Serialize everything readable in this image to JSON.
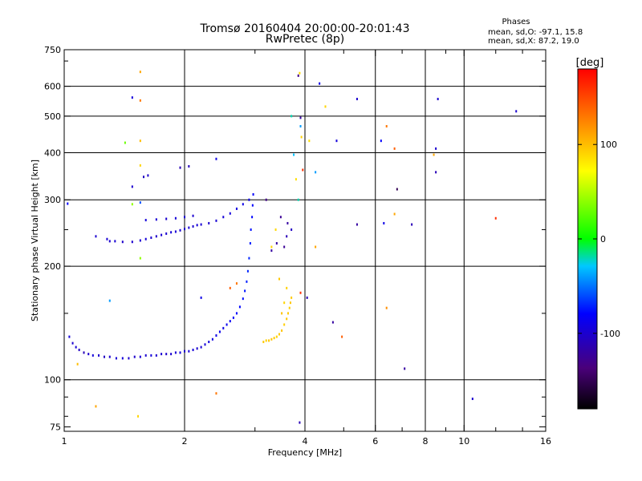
{
  "chart_data": {
    "type": "scatter",
    "title_line1": "Tromsø 20160404 20:00:00-20:01:43",
    "title_line2": "RwPretec (8p)",
    "phases": {
      "heading": "Phases",
      "line_o": "mean, sd,O: -97.1, 15.8",
      "line_x": "mean, sd,X:  87.2, 19.0"
    },
    "xlabel": "Frequency [MHz]",
    "ylabel": "Stationary phase Virtual Height [km]",
    "x_scale": "log",
    "y_scale": "log",
    "xlim": [
      1,
      16
    ],
    "ylim": [
      73,
      750
    ],
    "x_ticks": [
      1,
      2,
      4,
      6,
      8,
      10,
      16
    ],
    "x_tick_labels": [
      "1",
      "2",
      "4",
      "6",
      "8",
      "10",
      "16"
    ],
    "x_minor_ticks": [
      3,
      5,
      7,
      9,
      12,
      14
    ],
    "y_ticks": [
      75,
      100,
      200,
      300,
      400,
      500,
      600,
      750
    ],
    "y_tick_labels": [
      "75",
      "100",
      "200",
      "300",
      "400",
      "500",
      "600",
      "750"
    ],
    "y_minor_ticks": [
      80,
      90,
      150,
      250,
      700
    ],
    "grid": true,
    "colorbar": {
      "label": "[deg]",
      "range": [
        -180,
        180
      ],
      "ticks": [
        100,
        0,
        -100
      ],
      "tick_labels": [
        "100",
        "0",
        "-100"
      ]
    },
    "series": [
      {
        "label_note": "O-mode trace (blue, phase ~ -100 deg)",
        "points": [
          [
            1.03,
            130,
            -95
          ],
          [
            1.05,
            125,
            -100
          ],
          [
            1.07,
            122,
            -98
          ],
          [
            1.09,
            120,
            -105
          ],
          [
            1.12,
            118,
            -110
          ],
          [
            1.15,
            117,
            -100
          ],
          [
            1.18,
            116,
            -95
          ],
          [
            1.22,
            116,
            -100
          ],
          [
            1.26,
            115,
            -105
          ],
          [
            1.3,
            115,
            -100
          ],
          [
            1.35,
            114,
            -98
          ],
          [
            1.4,
            114,
            -95
          ],
          [
            1.45,
            114,
            -100
          ],
          [
            1.5,
            115,
            -102
          ],
          [
            1.55,
            115,
            -98
          ],
          [
            1.6,
            116,
            -100
          ],
          [
            1.65,
            116,
            -95
          ],
          [
            1.7,
            116,
            -100
          ],
          [
            1.75,
            117,
            -98
          ],
          [
            1.8,
            117,
            -102
          ],
          [
            1.85,
            117,
            -100
          ],
          [
            1.9,
            118,
            -98
          ],
          [
            1.95,
            118,
            -95
          ],
          [
            2.0,
            119,
            -100
          ],
          [
            2.05,
            119,
            -98
          ],
          [
            2.1,
            120,
            -96
          ],
          [
            2.15,
            121,
            -100
          ],
          [
            2.2,
            122,
            -98
          ],
          [
            2.25,
            124,
            -96
          ],
          [
            2.3,
            126,
            -94
          ],
          [
            2.35,
            128,
            -92
          ],
          [
            2.4,
            131,
            -90
          ],
          [
            2.45,
            134,
            -88
          ],
          [
            2.5,
            137,
            -90
          ],
          [
            2.55,
            140,
            -86
          ],
          [
            2.6,
            143,
            -84
          ],
          [
            2.65,
            146,
            -82
          ],
          [
            2.7,
            150,
            -80
          ],
          [
            2.75,
            156,
            -78
          ],
          [
            2.8,
            164,
            -76
          ],
          [
            2.83,
            172,
            -74
          ],
          [
            2.86,
            182,
            -72
          ],
          [
            2.88,
            194,
            -70
          ],
          [
            2.9,
            210,
            -70
          ],
          [
            2.92,
            230,
            -72
          ],
          [
            2.93,
            250,
            -75
          ],
          [
            2.95,
            270,
            -78
          ],
          [
            2.96,
            290,
            -80
          ],
          [
            2.97,
            310,
            -82
          ],
          [
            1.3,
            233,
            -100
          ],
          [
            1.34,
            233,
            -98
          ],
          [
            1.4,
            232,
            -102
          ],
          [
            1.48,
            232,
            -100
          ],
          [
            1.55,
            234,
            -98
          ],
          [
            1.6,
            236,
            -96
          ],
          [
            1.65,
            238,
            -100
          ],
          [
            1.7,
            240,
            -102
          ],
          [
            1.75,
            242,
            -98
          ],
          [
            1.8,
            244,
            -100
          ],
          [
            1.85,
            246,
            -96
          ],
          [
            1.9,
            247,
            -98
          ],
          [
            1.95,
            249,
            -100
          ],
          [
            2.0,
            251,
            -102
          ],
          [
            2.05,
            253,
            -98
          ],
          [
            2.1,
            255,
            -100
          ],
          [
            2.15,
            257,
            -96
          ],
          [
            2.2,
            258,
            -98
          ],
          [
            2.3,
            260,
            -100
          ],
          [
            2.4,
            264,
            -98
          ],
          [
            2.5,
            270,
            -96
          ],
          [
            2.6,
            276,
            -94
          ],
          [
            2.7,
            284,
            -92
          ],
          [
            2.8,
            292,
            -90
          ],
          [
            2.9,
            300,
            -88
          ],
          [
            1.6,
            265,
            -95
          ],
          [
            1.7,
            266,
            -98
          ],
          [
            1.8,
            267,
            -100
          ],
          [
            1.9,
            268,
            -96
          ],
          [
            2.0,
            270,
            -98
          ],
          [
            2.1,
            272,
            -100
          ],
          [
            1.2,
            240,
            -100
          ],
          [
            1.28,
            236,
            -98
          ],
          [
            1.58,
            345,
            -105
          ],
          [
            1.62,
            348,
            -102
          ],
          [
            1.95,
            365,
            -110
          ],
          [
            2.05,
            368,
            -108
          ],
          [
            2.4,
            385,
            -90
          ],
          [
            1.48,
            560,
            -95
          ],
          [
            1.48,
            325,
            -100
          ]
        ]
      },
      {
        "label_note": "X-mode trace (yellow, phase ~ +95 deg)",
        "points": [
          [
            3.15,
            126,
            95
          ],
          [
            3.2,
            127,
            92
          ],
          [
            3.25,
            127,
            96
          ],
          [
            3.3,
            128,
            98
          ],
          [
            3.35,
            129,
            94
          ],
          [
            3.4,
            130,
            90
          ],
          [
            3.45,
            132,
            95
          ],
          [
            3.5,
            135,
            97
          ],
          [
            3.55,
            140,
            93
          ],
          [
            3.6,
            145,
            96
          ],
          [
            3.63,
            150,
            94
          ],
          [
            3.66,
            155,
            92
          ],
          [
            3.68,
            160,
            96
          ],
          [
            3.7,
            165,
            95
          ],
          [
            3.5,
            150,
            98
          ],
          [
            3.55,
            160,
            90
          ],
          [
            3.6,
            175,
            92
          ],
          [
            3.45,
            185,
            96
          ],
          [
            3.3,
            225,
            90
          ],
          [
            3.38,
            250,
            88
          ],
          [
            3.88,
            650,
            88
          ],
          [
            3.92,
            440,
            92
          ],
          [
            3.8,
            340,
            85
          ],
          [
            4.5,
            530,
            90
          ],
          [
            4.1,
            430,
            85
          ]
        ]
      },
      {
        "label_note": "scattered points",
        "points": [
          [
            3.3,
            220,
            -120
          ],
          [
            3.4,
            230,
            -120
          ],
          [
            3.55,
            225,
            -125
          ],
          [
            3.6,
            240,
            -110
          ],
          [
            3.62,
            260,
            -120
          ],
          [
            3.7,
            250,
            -105
          ],
          [
            3.48,
            270,
            -125
          ],
          [
            3.2,
            300,
            -130
          ],
          [
            3.9,
            495,
            -120
          ],
          [
            3.85,
            640,
            -130
          ],
          [
            4.35,
            610,
            -90
          ],
          [
            4.8,
            430,
            -95
          ],
          [
            5.4,
            555,
            -100
          ],
          [
            6.2,
            430,
            -80
          ],
          [
            6.8,
            320,
            -150
          ],
          [
            7.1,
            107,
            -120
          ],
          [
            7.4,
            258,
            -110
          ],
          [
            8.5,
            355,
            -110
          ],
          [
            8.5,
            410,
            -100
          ],
          [
            8.6,
            555,
            -100
          ],
          [
            10.5,
            89,
            -100
          ],
          [
            13.5,
            515,
            -100
          ],
          [
            4.05,
            165,
            -110
          ],
          [
            4.7,
            142,
            -120
          ],
          [
            2.2,
            165,
            -90
          ],
          [
            1.3,
            162,
            -40
          ],
          [
            5.4,
            258,
            -120
          ],
          [
            6.3,
            260,
            -90
          ],
          [
            3.7,
            500,
            -20
          ],
          [
            3.9,
            470,
            -40
          ],
          [
            4.25,
            355,
            -40
          ],
          [
            3.75,
            395,
            -30
          ],
          [
            3.85,
            300,
            -20
          ],
          [
            1.42,
            425,
            30
          ],
          [
            1.02,
            293,
            -80
          ],
          [
            1.55,
            295,
            -60
          ],
          [
            1.48,
            292,
            40
          ],
          [
            1.55,
            210,
            40
          ],
          [
            3.88,
            77,
            -110
          ],
          [
            1.08,
            110,
            100
          ],
          [
            1.2,
            85,
            110
          ],
          [
            1.53,
            80,
            90
          ],
          [
            2.4,
            92,
            130
          ],
          [
            4.95,
            130,
            140
          ],
          [
            6.4,
            155,
            120
          ],
          [
            6.7,
            275,
            110
          ],
          [
            4.25,
            225,
            110
          ],
          [
            6.4,
            470,
            130
          ],
          [
            6.7,
            410,
            140
          ],
          [
            1.55,
            655,
            110
          ],
          [
            1.55,
            550,
            130
          ],
          [
            12.0,
            268,
            160
          ],
          [
            8.4,
            395,
            110
          ],
          [
            1.55,
            370,
            90
          ],
          [
            1.55,
            430,
            100
          ],
          [
            3.9,
            170,
            160
          ],
          [
            3.95,
            360,
            160
          ],
          [
            2.6,
            175,
            140
          ],
          [
            2.7,
            180,
            130
          ]
        ]
      }
    ]
  }
}
